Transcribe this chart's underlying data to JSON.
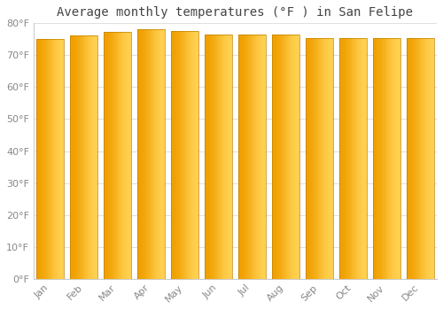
{
  "title": "Average monthly temperatures (°F ) in San Felipe",
  "months": [
    "Jan",
    "Feb",
    "Mar",
    "Apr",
    "May",
    "Jun",
    "Jul",
    "Aug",
    "Sep",
    "Oct",
    "Nov",
    "Dec"
  ],
  "values": [
    75.0,
    76.2,
    77.2,
    78.0,
    77.5,
    76.6,
    76.5,
    76.5,
    75.5,
    75.5,
    75.5,
    75.5
  ],
  "bar_color_center": "#FFD050",
  "bar_color_edge": "#F0A000",
  "background_color": "#ffffff",
  "plot_bg_color": "#ffffff",
  "grid_color": "#e0e0e0",
  "text_color": "#888888",
  "ylim": [
    0,
    80
  ],
  "ytick_step": 10,
  "title_fontsize": 10,
  "bar_width": 0.82
}
